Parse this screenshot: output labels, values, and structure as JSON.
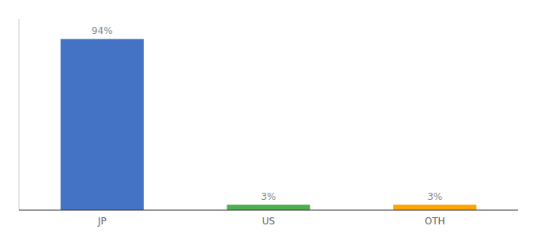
{
  "chart_data": {
    "type": "bar",
    "categories": [
      "JP",
      "US",
      "OTH"
    ],
    "values": [
      94,
      3,
      3
    ],
    "value_labels": [
      "94%",
      "3%",
      "3%"
    ],
    "colors": [
      "#4472c4",
      "#4caf50",
      "#ffa500"
    ],
    "ylim": [
      0,
      105
    ],
    "yticks": [],
    "grid": false,
    "data_labels": true,
    "tick_labels": "x"
  }
}
